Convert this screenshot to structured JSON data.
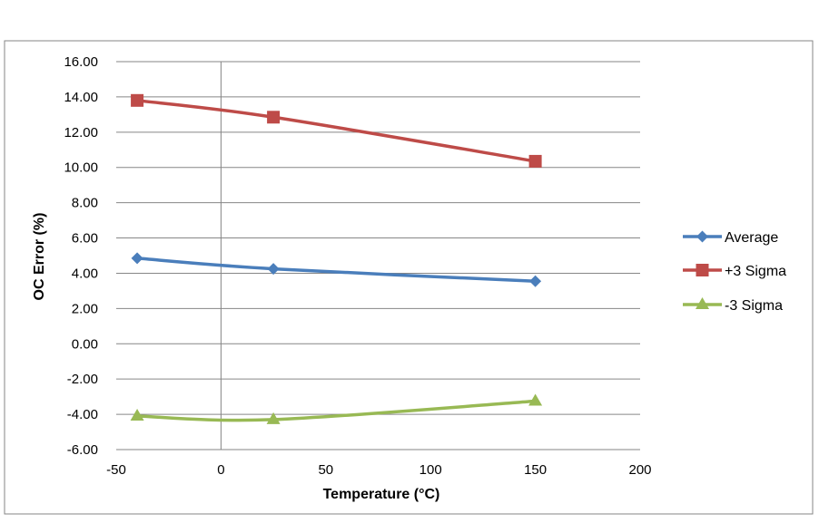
{
  "chart_data": {
    "type": "line",
    "title": "",
    "xlabel": "Temperature (°C)",
    "ylabel": "OC Error (%)",
    "xlim": [
      -50,
      200
    ],
    "ylim": [
      -6,
      16
    ],
    "x_ticks": [
      -50,
      0,
      50,
      100,
      150,
      200
    ],
    "y_ticks": [
      16,
      14,
      12,
      10,
      8,
      6,
      4,
      2,
      0,
      -2,
      -4,
      -6
    ],
    "y_tick_labels": [
      "16.00",
      "14.00",
      "12.00",
      "10.00",
      "8.00",
      "6.00",
      "4.00",
      "2.00",
      "0.00",
      "-2.00",
      "-4.00",
      "-6.00"
    ],
    "x_tick_labels": [
      "-50",
      "0",
      "50",
      "100",
      "150",
      "200"
    ],
    "grid": "horizontal",
    "legend_position": "right",
    "series": [
      {
        "name": "Average",
        "marker": "diamond",
        "color": "#4a7ebb",
        "x": [
          -40,
          25,
          150
        ],
        "y": [
          4.85,
          4.25,
          3.55
        ]
      },
      {
        "name": "+3 Sigma",
        "marker": "square",
        "color": "#be4b48",
        "x": [
          -40,
          25,
          150
        ],
        "y": [
          13.8,
          12.85,
          10.35
        ]
      },
      {
        "name": "-3 Sigma",
        "marker": "triangle",
        "color": "#98b954",
        "x": [
          -40,
          25,
          150
        ],
        "y": [
          -4.1,
          -4.3,
          -3.25
        ]
      }
    ]
  }
}
